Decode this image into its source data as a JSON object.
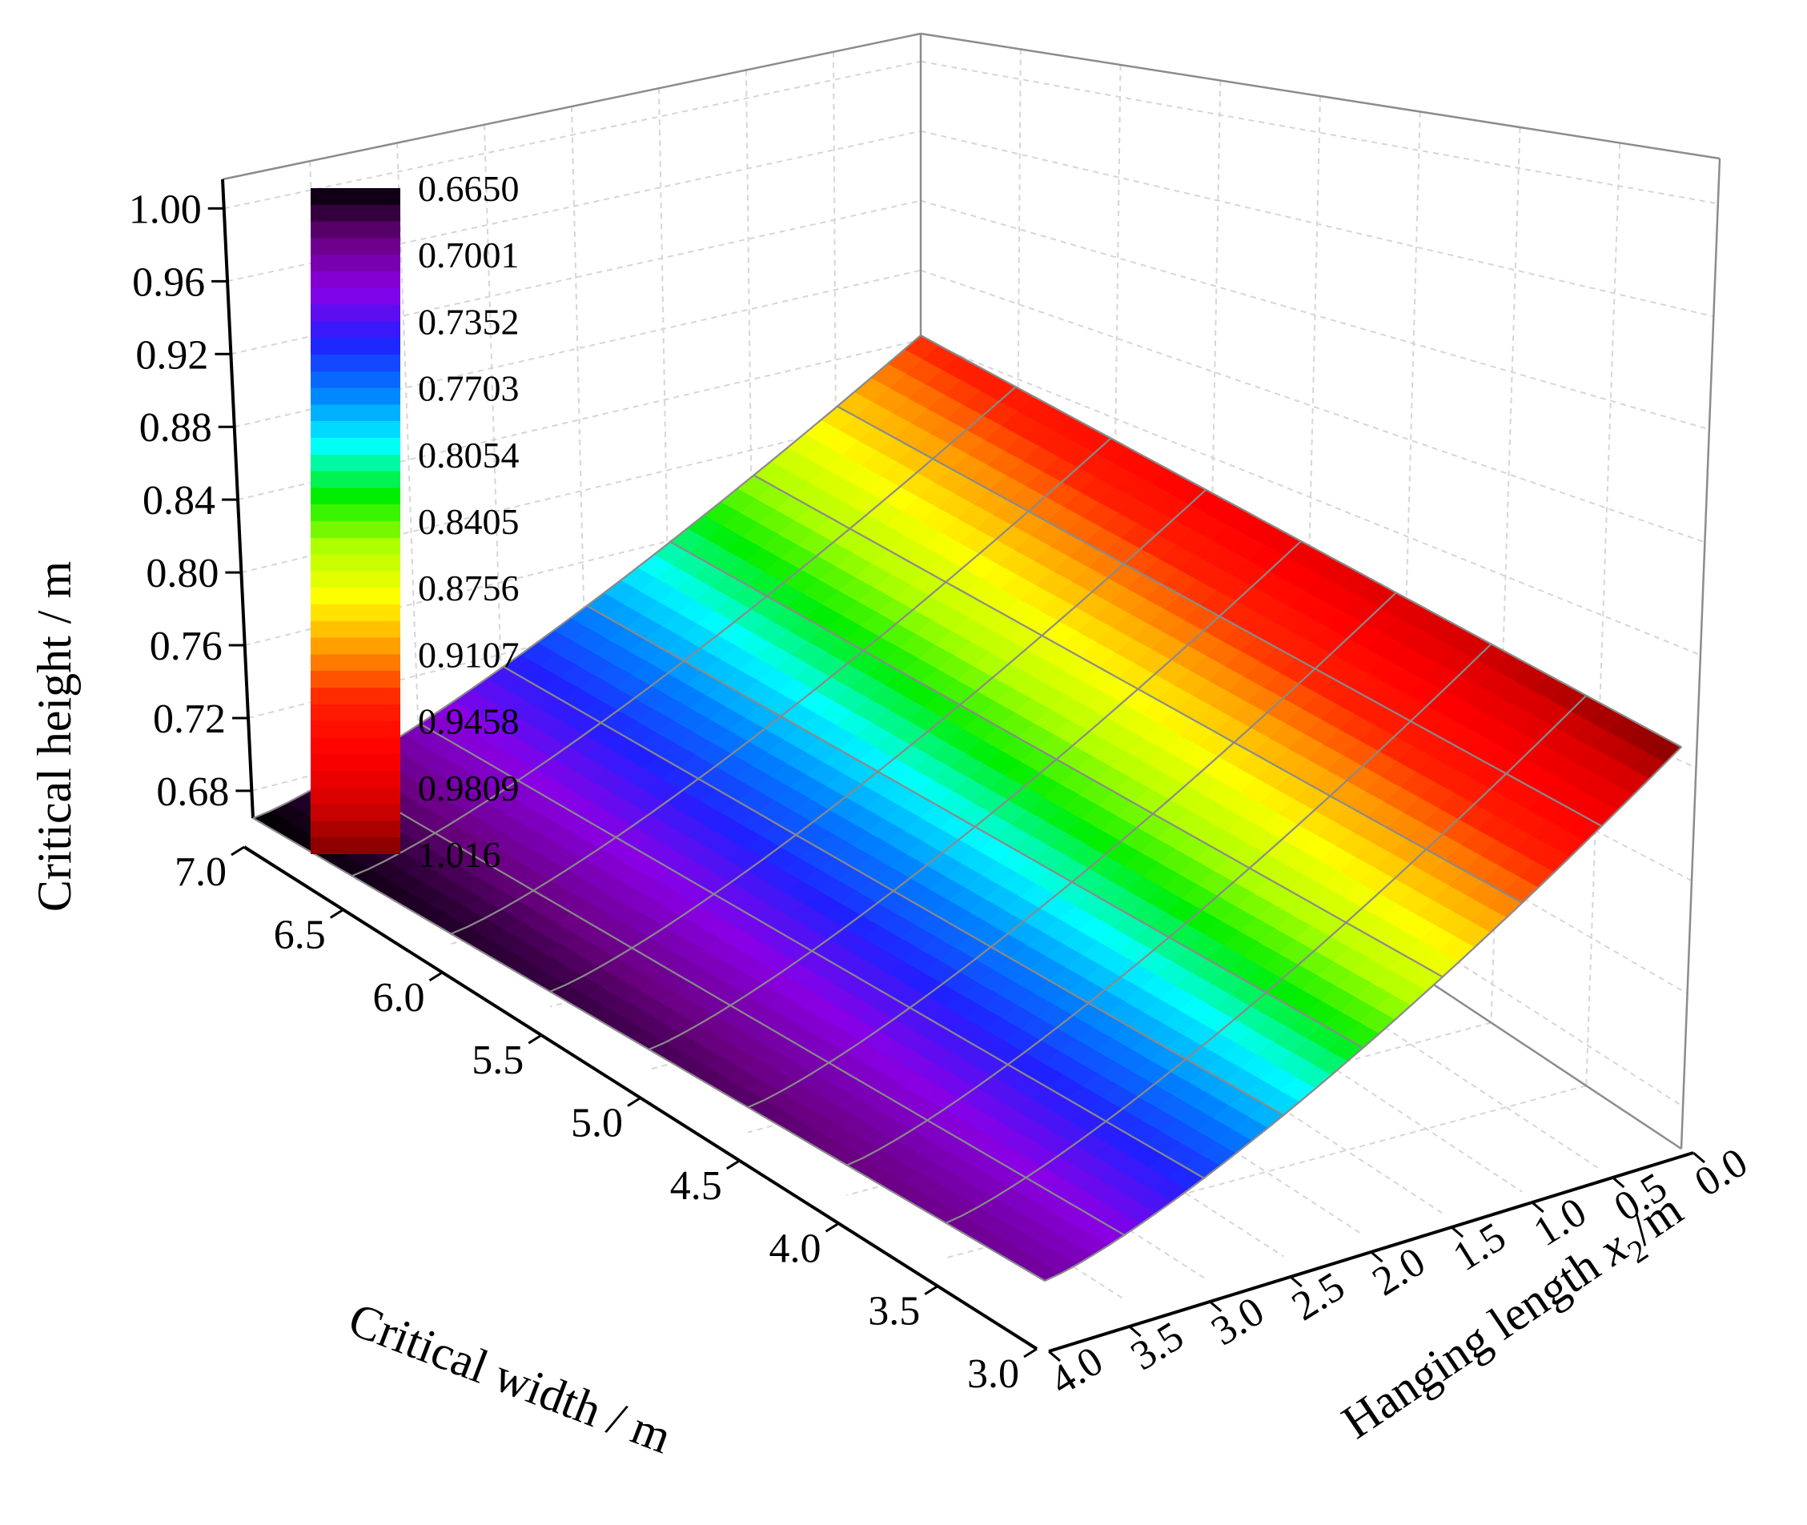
{
  "chart_data": {
    "type": "surface3d",
    "title": "",
    "zlabel": "Critical height / m",
    "xlabel": "Critical width / m",
    "ylabel_prefix": "Hanging length ",
    "ylabel_var": "x",
    "ylabel_sub": "2",
    "ylabel_suffix": "/m",
    "z_ticks": [
      "0.68",
      "0.72",
      "0.76",
      "0.80",
      "0.84",
      "0.88",
      "0.92",
      "0.96",
      "1.00"
    ],
    "z_tick_values": [
      0.68,
      0.72,
      0.76,
      0.8,
      0.84,
      0.88,
      0.92,
      0.96,
      1.0
    ],
    "x_ticks": [
      "7.0",
      "6.5",
      "6.0",
      "5.5",
      "5.0",
      "4.5",
      "4.0",
      "3.5",
      "3.0"
    ],
    "x_tick_values": [
      7.0,
      6.5,
      6.0,
      5.5,
      5.0,
      4.5,
      4.0,
      3.5,
      3.0
    ],
    "y_ticks": [
      "4.0",
      "3.5",
      "3.0",
      "2.5",
      "2.0",
      "1.5",
      "1.0",
      "0.5",
      "0.0"
    ],
    "y_tick_values": [
      4.0,
      3.5,
      3.0,
      2.5,
      2.0,
      1.5,
      1.0,
      0.5,
      0.0
    ],
    "xlim": [
      3.0,
      7.0
    ],
    "ylim": [
      0.0,
      4.0
    ],
    "zlim": [
      0.665,
      1.016
    ],
    "grid": true,
    "corner_values": [
      {
        "width": 7.0,
        "hanging_length": 4.0,
        "height": 0.665
      },
      {
        "width": 3.0,
        "hanging_length": 4.0,
        "height": 0.7
      },
      {
        "width": 7.0,
        "hanging_length": 0.0,
        "height": 0.935
      },
      {
        "width": 3.0,
        "hanging_length": 0.0,
        "height": 1.016
      }
    ],
    "colorbar": {
      "labels": [
        "0.6650",
        "0.7001",
        "0.7352",
        "0.7703",
        "0.8054",
        "0.8405",
        "0.8756",
        "0.9107",
        "0.9458",
        "0.9809",
        "1.016"
      ],
      "placement": "top-left",
      "colormap": [
        "#000000",
        "#6a0080",
        "#8a00e6",
        "#2020ff",
        "#0080ff",
        "#00ffff",
        "#00ee00",
        "#b0ff00",
        "#ffff00",
        "#ff9900",
        "#ff2200",
        "#ff0000",
        "#d80000",
        "#800000"
      ]
    }
  }
}
